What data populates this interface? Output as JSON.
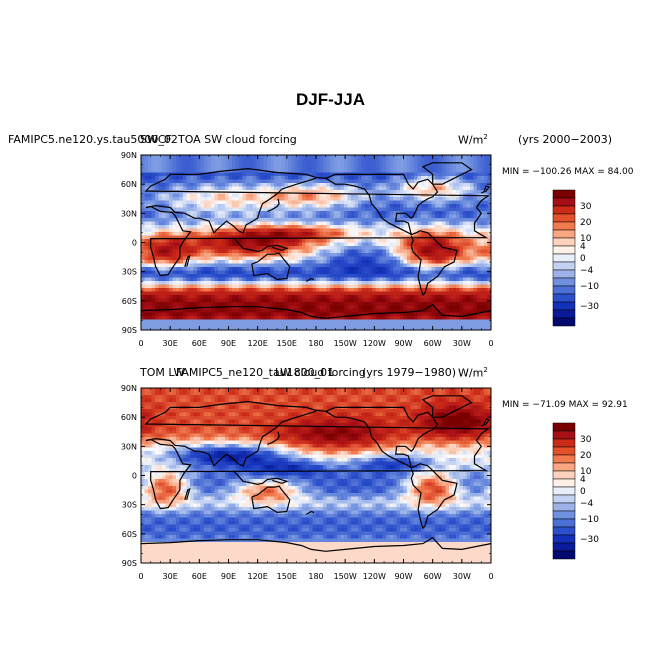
{
  "chart_data": {
    "type": "heatmap",
    "title": "DJF-JJA",
    "units_label": "W/m",
    "units_exponent": "2",
    "x_ticks": [
      "0",
      "30E",
      "60E",
      "90E",
      "120E",
      "150E",
      "180",
      "150W",
      "120W",
      "90W",
      "60W",
      "30W",
      "0"
    ],
    "y_ticks": [
      "90N",
      "60N",
      "30N",
      "0",
      "30S",
      "60S",
      "90S"
    ],
    "panels": [
      {
        "left_title": "FAMIPC5.ne120.ys.tau5000_02",
        "left_title_overlap": "SWCF",
        "center_title": "TOA SW cloud forcing",
        "right_title": "(yrs 2000−2003)",
        "min_max": "MIN = −100.26 MAX =  84.00",
        "colorbar_labels": [
          "30",
          "20",
          "10",
          "4",
          "0",
          "−4",
          "−10",
          "−30"
        ]
      },
      {
        "left_title": "TOM LW",
        "left_title_overlap": "FAMIPC5_ne120_tau1800_01",
        "center_title": "LW cloud forcing",
        "right_title": "(yrs 1979−1980)",
        "min_max": "MIN = −71.09 MAX =  92.91",
        "colorbar_labels": [
          "30",
          "20",
          "10",
          "4",
          "0",
          "−4",
          "−10",
          "−30"
        ]
      }
    ],
    "colorbar_colors": [
      "#7a0000",
      "#a50f15",
      "#cb2b18",
      "#e4502a",
      "#f17a4e",
      "#f9a683",
      "#fcd2bd",
      "#fdf0e6",
      "#e8eefa",
      "#c3d2f2",
      "#9db3e9",
      "#6f8fdf",
      "#4b6fd6",
      "#2c4fcb",
      "#1330b8",
      "#0a1a9a",
      "#020a70"
    ]
  }
}
